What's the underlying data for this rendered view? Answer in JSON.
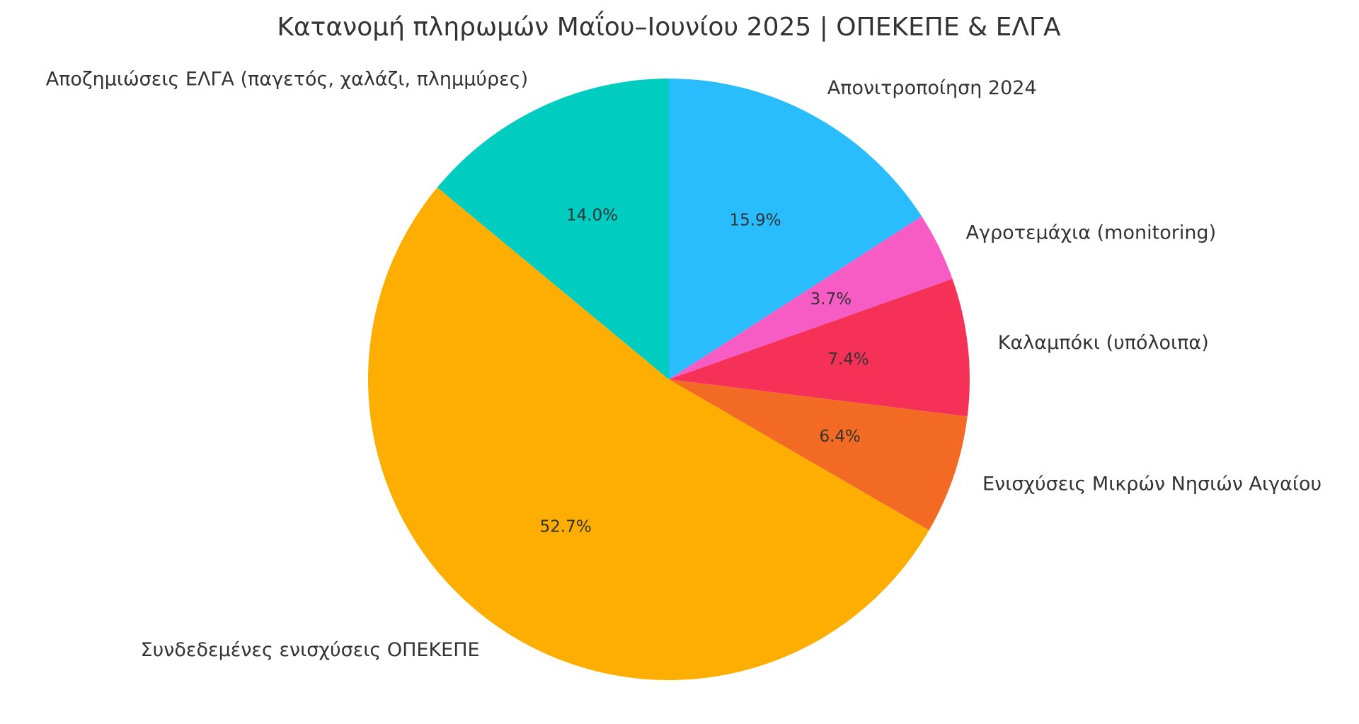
{
  "chart_data": {
    "type": "pie",
    "title": "Κατανομή πληρωμών Μαΐου–Ιουνίου 2025 | ΟΠΕΚΕΠΕ & ΕΛΓΑ",
    "categories": [
      "Απονιτροποίηση 2024",
      "Αγροτεμάχια (monitoring)",
      "Καλαμπόκι (υπόλοιπα)",
      "Ενισχύσεις Μικρών Νησιών Αιγαίου",
      "Συνδεδεμένες ενισχύσεις ΟΠΕΚΕΠΕ",
      "Αποζημιώσεις ΕΛΓΑ (παγετός, χαλάζι, πλημμύρες)"
    ],
    "values": [
      15.9,
      3.7,
      7.4,
      6.4,
      52.7,
      14.0
    ],
    "value_labels": [
      "15.9%",
      "3.7%",
      "7.4%",
      "6.4%",
      "52.7%",
      "14.0%"
    ],
    "colors": [
      "#29bdfd",
      "#f75bc4",
      "#f53158",
      "#f26a24",
      "#fdae00",
      "#00ccc0"
    ]
  }
}
